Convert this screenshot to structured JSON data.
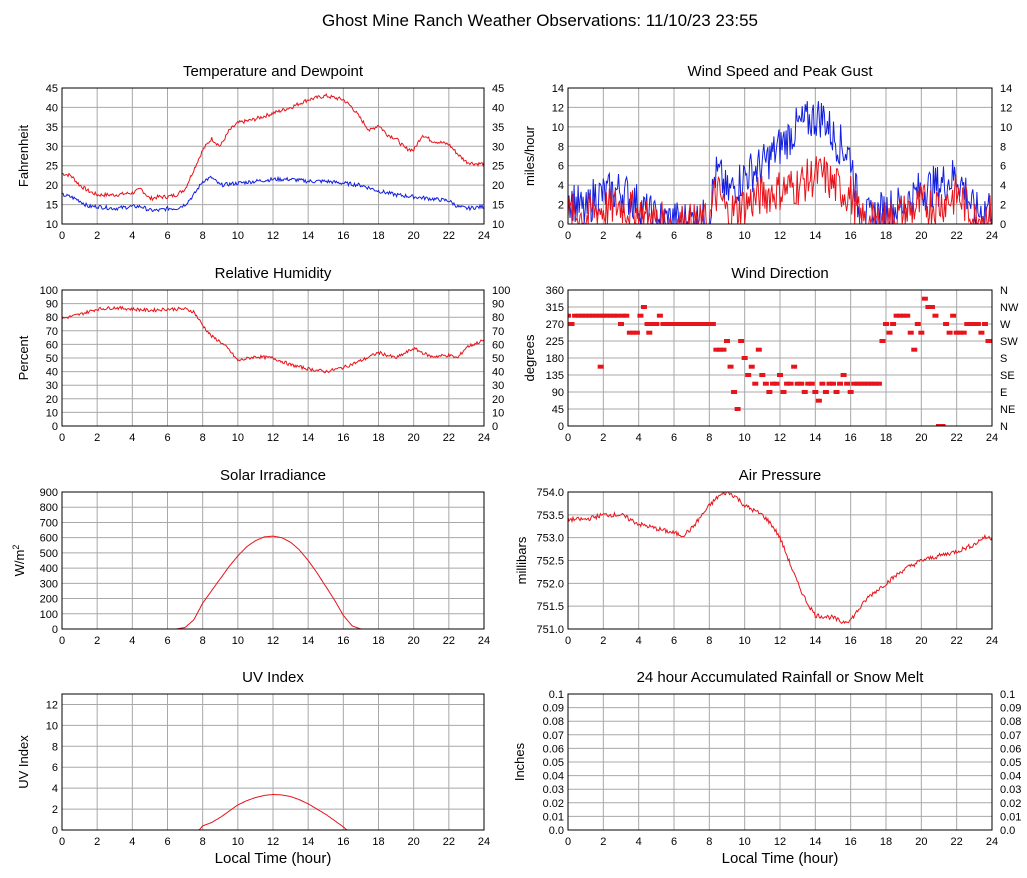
{
  "page": {
    "title": "Ghost Mine Ranch Weather Observations: 11/10/23 23:55"
  },
  "colors": {
    "primary_series": "#e8141c",
    "secondary_series": "#1420e0",
    "grid": "#a8a8a8",
    "frame": "#000000"
  },
  "chart_data": [
    {
      "id": "temp",
      "type": "line",
      "title": "Temperature and Dewpoint",
      "ylabel": "Fahrenheit",
      "xlabel": "",
      "xlim": [
        0,
        24
      ],
      "ylim": [
        10,
        45
      ],
      "xticks": [
        0,
        2,
        4,
        6,
        8,
        10,
        12,
        14,
        16,
        18,
        20,
        22,
        24
      ],
      "yticks": [
        "10",
        "15",
        "20",
        "25",
        "30",
        "35",
        "40",
        "45"
      ],
      "right_ticks": [
        "10",
        "15",
        "20",
        "25",
        "30",
        "35",
        "40",
        "45"
      ],
      "noise": 0.5,
      "series": [
        {
          "color": "primary",
          "x": [
            0,
            0.5,
            1,
            1.5,
            2,
            3,
            4,
            4.5,
            5,
            5.5,
            6,
            6.5,
            7,
            7.5,
            8,
            8.5,
            9,
            9.5,
            10,
            11,
            12,
            13,
            14,
            15,
            16,
            16.5,
            17,
            17.5,
            18,
            18.5,
            19,
            19.5,
            20,
            20.5,
            21,
            22,
            22.5,
            23,
            23.5,
            24
          ],
          "values": [
            23,
            22.5,
            20,
            18.5,
            17.5,
            17.5,
            18,
            19,
            16.5,
            17,
            17,
            17.5,
            19,
            24,
            29,
            32,
            30,
            34,
            36,
            37,
            38.5,
            40,
            42,
            43,
            42,
            40,
            37,
            34,
            35.5,
            33,
            32,
            29.5,
            29,
            33,
            31.5,
            30.5,
            28,
            26,
            25.5,
            25.5
          ]
        },
        {
          "color": "secondary",
          "x": [
            0,
            0.5,
            1,
            1.5,
            2,
            3,
            4,
            4.5,
            5,
            5.5,
            6,
            6.5,
            7,
            7.5,
            8,
            8.5,
            9,
            10,
            11,
            12,
            13,
            14,
            15,
            16,
            17,
            18,
            19,
            20,
            21,
            22,
            22.5,
            23,
            24
          ],
          "values": [
            17.5,
            17,
            16,
            14.5,
            14.5,
            14,
            14.5,
            14.5,
            13.5,
            13.5,
            14,
            14,
            15,
            17.5,
            21,
            22,
            20,
            20.5,
            21,
            21.5,
            21.5,
            21,
            21,
            20.5,
            20,
            18.5,
            17.5,
            17,
            16.5,
            16,
            14.5,
            14,
            14.5
          ]
        }
      ]
    },
    {
      "id": "wind",
      "type": "line",
      "title": "Wind Speed and Peak Gust",
      "ylabel": "miles/hour",
      "xlabel": "",
      "xlim": [
        0,
        24
      ],
      "ylim": [
        0,
        14
      ],
      "xticks": [
        0,
        2,
        4,
        6,
        8,
        10,
        12,
        14,
        16,
        18,
        20,
        22,
        24
      ],
      "yticks": [
        "0",
        "2",
        "4",
        "6",
        "8",
        "10",
        "12",
        "14"
      ],
      "right_ticks": [
        "0",
        "2",
        "4",
        "6",
        "8",
        "10",
        "12",
        "14"
      ],
      "noise": 2.2,
      "series": [
        {
          "color": "secondary",
          "x": [
            0,
            0.5,
            1,
            1.5,
            2,
            3,
            4,
            4.5,
            5,
            6,
            7,
            8,
            8.3,
            8.6,
            9,
            10,
            11,
            12,
            13,
            14,
            14.5,
            15,
            16,
            16.5,
            17,
            18,
            19,
            20,
            21,
            22,
            22.5,
            23,
            24
          ],
          "values": [
            3,
            2,
            1,
            3,
            3,
            3.5,
            2,
            1,
            0.5,
            0.3,
            0.3,
            0.5,
            5,
            5,
            3,
            5,
            6,
            8,
            10,
            11,
            11,
            9,
            7,
            1,
            0.5,
            1.5,
            2,
            3.5,
            4,
            5,
            3.5,
            1,
            2
          ]
        },
        {
          "color": "primary",
          "x": [
            0,
            0.5,
            1,
            1.5,
            2,
            3,
            4,
            4.5,
            5,
            6,
            7,
            8,
            8.3,
            8.6,
            9,
            10,
            11,
            12,
            13,
            14,
            14.5,
            15,
            16,
            16.5,
            17,
            18,
            19,
            20,
            21,
            22,
            22.5,
            23,
            24
          ],
          "values": [
            1,
            1,
            0.5,
            1.5,
            1.5,
            2,
            1,
            0.5,
            0.2,
            0,
            0,
            0,
            3,
            3,
            1,
            2,
            3,
            3.5,
            4,
            5,
            5,
            4,
            3,
            0.5,
            0,
            0.3,
            1,
            2,
            2,
            3,
            2,
            0.5,
            1
          ]
        }
      ]
    },
    {
      "id": "rh",
      "type": "line",
      "title": "Relative Humidity",
      "ylabel": "Percent",
      "xlabel": "",
      "xlim": [
        0,
        24
      ],
      "ylim": [
        0,
        100
      ],
      "xticks": [
        0,
        2,
        4,
        6,
        8,
        10,
        12,
        14,
        16,
        18,
        20,
        22,
        24
      ],
      "yticks": [
        "0",
        "10",
        "20",
        "30",
        "40",
        "50",
        "60",
        "70",
        "80",
        "90",
        "100"
      ],
      "right_ticks": [
        "0",
        "10",
        "20",
        "30",
        "40",
        "50",
        "60",
        "70",
        "80",
        "90",
        "100"
      ],
      "noise": 1.2,
      "series": [
        {
          "color": "primary",
          "x": [
            0,
            1,
            2,
            3,
            4,
            5,
            6,
            7,
            7.5,
            8,
            8.5,
            9,
            9.5,
            10,
            11,
            12,
            13,
            14,
            15,
            16,
            17,
            18,
            19,
            20,
            21,
            22,
            22.5,
            23,
            24
          ],
          "values": [
            79,
            82,
            86,
            87,
            86,
            85,
            86,
            86,
            84,
            74,
            66,
            62,
            56,
            48,
            51,
            50,
            45,
            42,
            40,
            43,
            48,
            54,
            50,
            57,
            51,
            52,
            50,
            58,
            63
          ]
        }
      ]
    },
    {
      "id": "wdir",
      "type": "scatter",
      "title": "Wind Direction",
      "ylabel": "degrees",
      "xlabel": "",
      "xlim": [
        0,
        24
      ],
      "ylim": [
        0,
        360
      ],
      "xticks": [
        0,
        2,
        4,
        6,
        8,
        10,
        12,
        14,
        16,
        18,
        20,
        22,
        24
      ],
      "yticks": [
        "0",
        "45",
        "90",
        "135",
        "180",
        "225",
        "270",
        "315",
        "360"
      ],
      "right_ticks": [
        "N",
        "NE",
        "E",
        "SE",
        "S",
        "SW",
        "W",
        "NW",
        "N"
      ],
      "series": [
        {
          "color": "primary",
          "x": [
            0,
            0.2,
            0.4,
            0.6,
            0.8,
            1,
            1.2,
            1.4,
            1.6,
            1.8,
            1.85,
            2,
            2.2,
            2.4,
            2.6,
            2.8,
            3,
            3.1,
            3.3,
            3.5,
            3.7,
            3.9,
            4.1,
            4.3,
            4.5,
            4.6,
            4.8,
            5,
            5.2,
            5.4,
            5.6,
            5.8,
            6,
            6.2,
            6.4,
            6.6,
            6.8,
            7,
            7.2,
            7.4,
            7.6,
            7.8,
            8,
            8.2,
            8.4,
            8.6,
            8.8,
            9,
            9.2,
            9.4,
            9.6,
            9.8,
            10,
            10.2,
            10.4,
            10.6,
            10.8,
            11,
            11.2,
            11.4,
            11.6,
            11.8,
            12,
            12.2,
            12.4,
            12.6,
            12.8,
            13,
            13.2,
            13.4,
            13.6,
            13.8,
            14,
            14.2,
            14.4,
            14.6,
            14.8,
            15,
            15.2,
            15.4,
            15.6,
            15.8,
            16,
            16.2,
            16.4,
            16.6,
            16.8,
            17,
            17.2,
            17.4,
            17.6,
            17.8,
            18,
            18.2,
            18.4,
            18.6,
            18.8,
            19,
            19.2,
            19.4,
            19.6,
            19.8,
            20,
            20.2,
            20.4,
            20.6,
            20.8,
            21,
            21.2,
            21.4,
            21.6,
            21.8,
            22,
            22.2,
            22.4,
            22.6,
            22.8,
            23,
            23.2,
            23.4,
            23.6,
            23.8,
            24
          ],
          "values": [
            292,
            270,
            292,
            292,
            292,
            292,
            292,
            292,
            292,
            292,
            157,
            292,
            292,
            292,
            292,
            292,
            270,
            292,
            292,
            247,
            247,
            247,
            292,
            315,
            270,
            247,
            270,
            270,
            292,
            270,
            270,
            270,
            270,
            270,
            270,
            270,
            270,
            270,
            270,
            270,
            270,
            270,
            270,
            270,
            202,
            202,
            202,
            225,
            157,
            90,
            45,
            225,
            180,
            135,
            157,
            112,
            202,
            135,
            112,
            90,
            112,
            112,
            135,
            90,
            112,
            112,
            157,
            112,
            112,
            90,
            112,
            112,
            90,
            67,
            112,
            90,
            112,
            112,
            90,
            112,
            135,
            112,
            90,
            112,
            112,
            112,
            112,
            112,
            112,
            112,
            112,
            225,
            270,
            247,
            270,
            292,
            292,
            292,
            292,
            247,
            202,
            270,
            247,
            337,
            315,
            315,
            292,
            0,
            0,
            270,
            247,
            292,
            247,
            247,
            247,
            270,
            270,
            270,
            270,
            247,
            270,
            225,
            225
          ]
        }
      ]
    },
    {
      "id": "solar",
      "type": "line",
      "title": "Solar Irradiance",
      "ylabel": "W/m",
      "ylabel_sup": "2",
      "xlabel": "",
      "xlim": [
        0,
        24
      ],
      "ylim": [
        0,
        900
      ],
      "xticks": [
        0,
        2,
        4,
        6,
        8,
        10,
        12,
        14,
        16,
        18,
        20,
        22,
        24
      ],
      "yticks": [
        "0",
        "100",
        "200",
        "300",
        "400",
        "500",
        "600",
        "700",
        "800",
        "900"
      ],
      "right_ticks": [],
      "noise": 0,
      "series": [
        {
          "color": "primary",
          "x": [
            0,
            6.5,
            7,
            7.5,
            8,
            8.5,
            9,
            9.5,
            10,
            10.5,
            11,
            11.5,
            12,
            12.5,
            13,
            13.5,
            14,
            14.5,
            15,
            15.5,
            16,
            16.5,
            17,
            24
          ],
          "values": [
            0,
            0,
            10,
            60,
            170,
            250,
            330,
            410,
            480,
            540,
            580,
            605,
            610,
            600,
            570,
            520,
            450,
            370,
            280,
            190,
            90,
            20,
            0,
            0
          ]
        }
      ]
    },
    {
      "id": "pressure",
      "type": "line",
      "title": "Air Pressure",
      "ylabel": "millibars",
      "xlabel": "",
      "xlim": [
        0,
        24
      ],
      "ylim": [
        751,
        754
      ],
      "xticks": [
        0,
        2,
        4,
        6,
        8,
        10,
        12,
        14,
        16,
        18,
        20,
        22,
        24
      ],
      "yticks": [
        "751.0",
        "751.5",
        "752.0",
        "752.5",
        "753.0",
        "753.5",
        "754.0"
      ],
      "right_ticks": [],
      "noise": 0.05,
      "series": [
        {
          "color": "primary",
          "x": [
            0,
            1,
            2,
            3,
            4,
            5,
            6,
            6.5,
            7,
            8,
            8.5,
            9,
            9.5,
            10,
            11,
            11.5,
            12,
            12.5,
            13,
            13.5,
            14,
            15,
            15.5,
            16,
            17,
            18,
            19,
            20,
            21,
            22,
            23,
            23.5,
            24
          ],
          "values": [
            753.4,
            753.4,
            753.5,
            753.5,
            753.3,
            753.2,
            753.1,
            753.05,
            753.2,
            753.7,
            753.9,
            754.0,
            753.9,
            753.7,
            753.5,
            753.3,
            753.0,
            752.5,
            752.0,
            751.6,
            751.3,
            751.25,
            751.15,
            751.2,
            751.7,
            752.0,
            752.3,
            752.5,
            752.6,
            752.7,
            752.85,
            753.0,
            753.0
          ]
        }
      ]
    },
    {
      "id": "uv",
      "type": "line",
      "title": "UV Index",
      "ylabel": "UV Index",
      "xlabel": "Local Time (hour)",
      "xlim": [
        0,
        24
      ],
      "ylim": [
        0,
        13
      ],
      "xticks": [
        0,
        2,
        4,
        6,
        8,
        10,
        12,
        14,
        16,
        18,
        20,
        22,
        24
      ],
      "yticks": [
        "0",
        "2",
        "4",
        "6",
        "8",
        "10",
        "12"
      ],
      "ytick_values": [
        0,
        2,
        4,
        6,
        8,
        10,
        12
      ],
      "right_ticks": [],
      "noise": 0,
      "series": [
        {
          "color": "primary",
          "x": [
            0,
            7.8,
            8,
            8.5,
            9,
            9.5,
            10,
            10.5,
            11,
            11.5,
            12,
            12.5,
            13,
            13.5,
            14,
            14.5,
            15,
            15.5,
            16,
            16.2,
            24
          ],
          "values": [
            0,
            0,
            0.4,
            0.7,
            1.2,
            1.8,
            2.4,
            2.8,
            3.1,
            3.3,
            3.4,
            3.35,
            3.2,
            2.9,
            2.5,
            2.0,
            1.5,
            0.9,
            0.3,
            0,
            0
          ]
        }
      ]
    },
    {
      "id": "rain",
      "type": "line",
      "title": "24 hour Accumulated Rainfall or Snow Melt",
      "ylabel": "Inches",
      "xlabel": "Local Time (hour)",
      "xlim": [
        0,
        24
      ],
      "ylim": [
        0,
        0.1
      ],
      "xticks": [
        0,
        2,
        4,
        6,
        8,
        10,
        12,
        14,
        16,
        18,
        20,
        22,
        24
      ],
      "yticks": [
        "0.0",
        "0.01",
        "0.02",
        "0.03",
        "0.04",
        "0.05",
        "0.06",
        "0.07",
        "0.08",
        "0.09",
        "0.1"
      ],
      "right_ticks": [
        "0.0",
        "0.01",
        "0.02",
        "0.03",
        "0.04",
        "0.05",
        "0.06",
        "0.07",
        "0.08",
        "0.09",
        "0.1"
      ],
      "noise": 0,
      "series": [
        {
          "color": "primary",
          "x": [
            0,
            24
          ],
          "values": [
            0,
            0
          ]
        }
      ]
    }
  ]
}
